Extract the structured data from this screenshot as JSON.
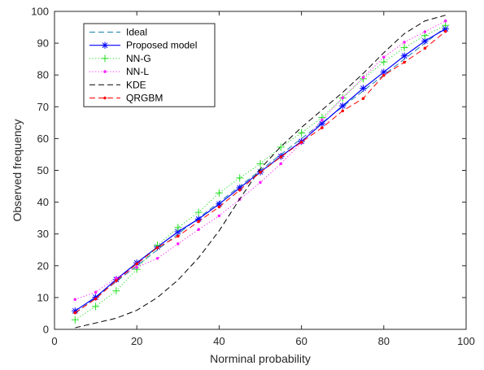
{
  "chart_data": {
    "type": "line",
    "xlabel": "Norminal probability",
    "ylabel": "Observed frequency",
    "xlim": [
      0,
      100
    ],
    "ylim": [
      0,
      100
    ],
    "xticks": [
      0,
      20,
      40,
      60,
      80,
      100
    ],
    "yticks": [
      0,
      10,
      20,
      30,
      40,
      50,
      60,
      70,
      80,
      90,
      100
    ],
    "grid": false,
    "legend_position": "top-left",
    "x": [
      5,
      10,
      15,
      20,
      25,
      30,
      35,
      40,
      45,
      50,
      55,
      60,
      65,
      70,
      75,
      80,
      85,
      90,
      95
    ],
    "series": [
      {
        "name": "Ideal",
        "color": "#1a7fb0",
        "line_style": "dashed",
        "marker": "none",
        "values": [
          5,
          10,
          15,
          20,
          25,
          30,
          35,
          40,
          45,
          50,
          55,
          60,
          65,
          70,
          75,
          80,
          85,
          90,
          95
        ]
      },
      {
        "name": "Proposed model",
        "color": "#0000ff",
        "line_style": "solid",
        "marker": "asterisk",
        "values": [
          5.8,
          10.1,
          15.7,
          20.9,
          25.9,
          30.7,
          34.7,
          39.4,
          44.5,
          49.5,
          54.4,
          59.1,
          64.7,
          70.3,
          75.8,
          80.9,
          86.0,
          90.7,
          94.5
        ]
      },
      {
        "name": "NN-G",
        "color": "#22dd22",
        "line_style": "dotted",
        "marker": "plus",
        "values": [
          3.0,
          7.2,
          12.1,
          18.9,
          26.4,
          32.0,
          36.8,
          42.9,
          47.6,
          52.1,
          57.3,
          61.8,
          66.6,
          72.8,
          78.8,
          84.1,
          88.6,
          92.4,
          95.6
        ]
      },
      {
        "name": "NN-L",
        "color": "#ff22ff",
        "line_style": "dotted",
        "marker": "dot",
        "values": [
          9.4,
          11.7,
          16.1,
          19.5,
          22.3,
          26.9,
          31.4,
          35.7,
          40.9,
          46.2,
          52.1,
          58.7,
          65.8,
          72.8,
          79.2,
          85.6,
          90.3,
          93.6,
          97.0
        ]
      },
      {
        "name": "KDE",
        "color": "#000000",
        "line_style": "dashed",
        "marker": "none",
        "values": [
          0.5,
          2.0,
          3.5,
          6.0,
          10.0,
          15.5,
          22.5,
          31.0,
          41.0,
          50.5,
          57.5,
          63.5,
          69.0,
          74.5,
          80.5,
          87.0,
          93.0,
          97.0,
          98.8
        ]
      },
      {
        "name": "QRGBM",
        "color": "#ff0000",
        "line_style": "dashed",
        "marker": "dot",
        "values": [
          5.2,
          9.6,
          15.3,
          20.6,
          25.7,
          29.3,
          33.9,
          38.5,
          43.8,
          49.4,
          54.2,
          58.9,
          63.4,
          68.7,
          72.6,
          79.9,
          84.0,
          88.4,
          93.7
        ]
      }
    ]
  }
}
